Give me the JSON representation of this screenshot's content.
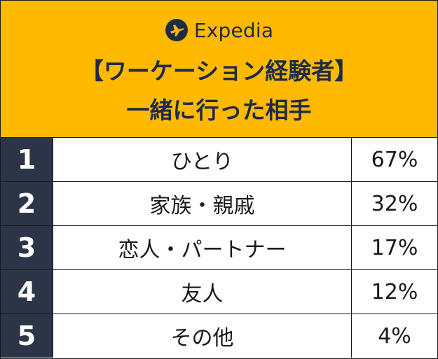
{
  "brand": {
    "name": "Expedia",
    "logo_icon": "plane-logo-icon"
  },
  "title": {
    "line1": "【ワーケーション経験者】",
    "line2": "一緒に行った相手"
  },
  "colors": {
    "header_bg": "#ffba00",
    "rank_bg": "#2c3547",
    "text_dark": "#1f2a44"
  },
  "chart_data": {
    "type": "table",
    "title": "【ワーケーション経験者】一緒に行った相手",
    "rows": [
      {
        "rank": "1",
        "label": "ひとり",
        "value": "67%"
      },
      {
        "rank": "2",
        "label": "家族・親戚",
        "value": "32%"
      },
      {
        "rank": "3",
        "label": "恋人・パートナー",
        "value": "17%"
      },
      {
        "rank": "4",
        "label": "友人",
        "value": "12%"
      },
      {
        "rank": "5",
        "label": "その他",
        "value": "4%"
      }
    ]
  }
}
